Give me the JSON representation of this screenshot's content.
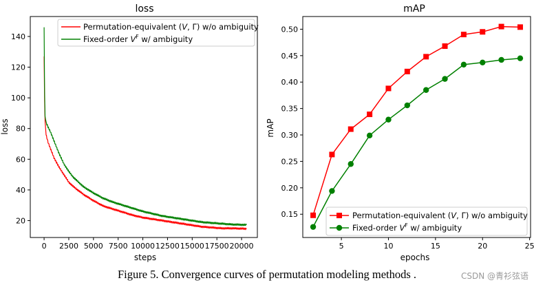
{
  "caption": "Figure 5. Convergence curves of permutation modeling methods .",
  "watermark": "CSDN @青衫弦语",
  "colors": {
    "red": "#ff0000",
    "green": "#008000"
  },
  "chart_data": [
    {
      "type": "line",
      "title": "loss",
      "xlabel": "steps",
      "ylabel": "loss",
      "xlim": [
        -1400,
        21600
      ],
      "ylim": [
        9,
        153
      ],
      "xticks": [
        0,
        2500,
        5000,
        7500,
        10000,
        12500,
        15000,
        17500,
        20000
      ],
      "xtick_labels": [
        "0",
        "2500",
        "5000",
        "7500",
        "10000",
        "12500",
        "15000",
        "17500",
        "20000"
      ],
      "yticks": [
        20,
        40,
        60,
        80,
        100,
        120,
        140
      ],
      "ytick_labels": [
        "20",
        "40",
        "60",
        "80",
        "100",
        "120",
        "140"
      ],
      "legend_position": "top-right",
      "series": [
        {
          "name": "Permutation-equivalent (V, Γ) w/o ambiguity",
          "legend_prefix": "Permutation-equivalent (",
          "legend_italic": "V",
          "legend_suffix": ", Γ) w/o ambiguity",
          "color": "#ff0000",
          "x": [
            0,
            50,
            100,
            200,
            400,
            700,
            1000,
            1500,
            2000,
            2500,
            3000,
            4000,
            5000,
            6000,
            7000,
            8000,
            9000,
            10000,
            11000,
            12000,
            13000,
            14000,
            15000,
            16000,
            17000,
            18000,
            19000,
            20000,
            20500
          ],
          "y": [
            127,
            98,
            85,
            76,
            71,
            66,
            61,
            55,
            50,
            45,
            42,
            37,
            33,
            29.5,
            27.5,
            25.5,
            23.5,
            22,
            21,
            20,
            19,
            18,
            17,
            16,
            15.5,
            15,
            15,
            14.8,
            14.7
          ]
        },
        {
          "name": "Fixed-order V^F w/ ambiguity",
          "legend_prefix": "Fixed-order ",
          "legend_italic": "V",
          "legend_sup": "F",
          "legend_suffix": " w/ ambiguity",
          "color": "#008000",
          "x": [
            0,
            50,
            100,
            200,
            400,
            700,
            1000,
            1500,
            2000,
            2500,
            3000,
            4000,
            5000,
            6000,
            7000,
            8000,
            9000,
            10000,
            11000,
            12000,
            13000,
            14000,
            15000,
            16000,
            17000,
            18000,
            19000,
            20000,
            20500
          ],
          "y": [
            146,
            104,
            88,
            84,
            81,
            77,
            72,
            64,
            57,
            52,
            48,
            42,
            38,
            34.5,
            32,
            30,
            28,
            26,
            24.5,
            23,
            22,
            21,
            20,
            19,
            18.5,
            18,
            17.5,
            17.3,
            17.2
          ]
        }
      ]
    },
    {
      "type": "line",
      "title": "mAP",
      "xlabel": "epochs",
      "ylabel": "mAP",
      "xlim": [
        0.9,
        25.1
      ],
      "ylim": [
        0.106,
        0.524
      ],
      "xticks": [
        5,
        10,
        15,
        20,
        25
      ],
      "xtick_labels": [
        "5",
        "10",
        "15",
        "20",
        "25"
      ],
      "yticks": [
        0.15,
        0.2,
        0.25,
        0.3,
        0.35,
        0.4,
        0.45,
        0.5
      ],
      "ytick_labels": [
        "0.15",
        "0.20",
        "0.25",
        "0.30",
        "0.35",
        "0.40",
        "0.45",
        "0.50"
      ],
      "legend_position": "bottom-right",
      "series": [
        {
          "name": "Permutation-equivalent (V, Γ) w/o ambiguity",
          "legend_prefix": "Permutation-equivalent (",
          "legend_italic": "V",
          "legend_suffix": ", Γ) w/o ambiguity",
          "color": "#ff0000",
          "marker": "square",
          "x": [
            2,
            4,
            6,
            8,
            10,
            12,
            14,
            16,
            18,
            20,
            22,
            24
          ],
          "y": [
            0.148,
            0.263,
            0.311,
            0.339,
            0.388,
            0.42,
            0.448,
            0.468,
            0.49,
            0.495,
            0.505,
            0.504
          ]
        },
        {
          "name": "Fixed-order V^F w/ ambiguity",
          "legend_prefix": "Fixed-order ",
          "legend_italic": "V",
          "legend_sup": "F",
          "legend_suffix": " w/ ambiguity",
          "color": "#008000",
          "marker": "circle",
          "x": [
            2,
            4,
            6,
            8,
            10,
            12,
            14,
            16,
            18,
            20,
            22,
            24
          ],
          "y": [
            0.126,
            0.194,
            0.245,
            0.299,
            0.329,
            0.356,
            0.385,
            0.406,
            0.433,
            0.437,
            0.442,
            0.445
          ]
        }
      ]
    }
  ]
}
